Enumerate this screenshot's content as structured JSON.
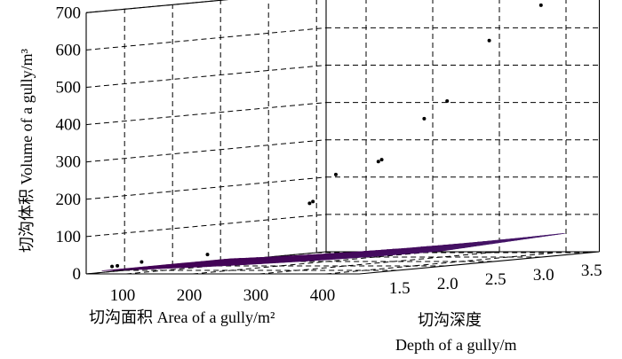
{
  "chart_data": {
    "type": "surface3d",
    "title": "",
    "xlabel": "切沟面积 Area of a gully/m²",
    "ylabel_cn": "切沟深度",
    "ylabel_en": "Depth of a gully/m",
    "zlabel": "切沟体积 Volume of a gully/m³",
    "x_ticks": [
      "100",
      "200",
      "300",
      "400"
    ],
    "y_ticks": [
      "1.5",
      "2.0",
      "2.5",
      "3.0",
      "3.5"
    ],
    "z_ticks": [
      "0",
      "100",
      "200",
      "300",
      "400",
      "500",
      "600",
      "700"
    ],
    "xlim": [
      40,
      450
    ],
    "ylim": [
      1.1,
      3.6
    ],
    "zlim": [
      0,
      700
    ],
    "grid": true,
    "colormap": "viridis",
    "surface": {
      "area_range": [
        40,
        420
      ],
      "depth_range": [
        1.15,
        3.3
      ]
    },
    "points": [
      {
        "area": 50,
        "depth": 1.3,
        "volume": 15
      },
      {
        "area": 58,
        "depth": 1.3,
        "volume": 17
      },
      {
        "area": 80,
        "depth": 1.4,
        "volume": 25
      },
      {
        "area": 150,
        "depth": 1.6,
        "volume": 40
      },
      {
        "area": 260,
        "depth": 1.9,
        "volume": 170
      },
      {
        "area": 265,
        "depth": 1.9,
        "volume": 175
      },
      {
        "area": 285,
        "depth": 2.0,
        "volume": 245
      },
      {
        "area": 320,
        "depth": 2.2,
        "volume": 275
      },
      {
        "area": 325,
        "depth": 2.2,
        "volume": 280
      },
      {
        "area": 360,
        "depth": 2.4,
        "volume": 385
      },
      {
        "area": 380,
        "depth": 2.5,
        "volume": 430
      },
      {
        "area": 400,
        "depth": 2.8,
        "volume": 585
      },
      {
        "area": 420,
        "depth": 3.2,
        "volume": 670
      }
    ]
  }
}
